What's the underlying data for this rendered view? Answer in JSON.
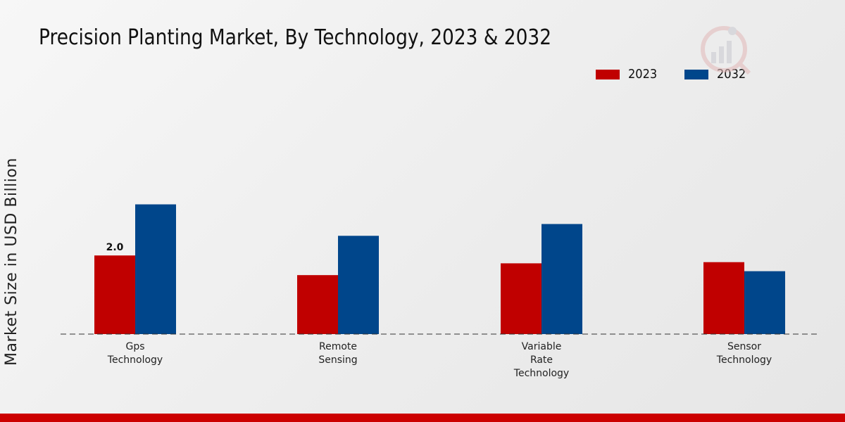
{
  "header": {
    "title": "Precision Planting Market, By Technology, 2023 & 2032"
  },
  "colors": {
    "series_2023": "#c00000",
    "series_2032": "#00468b",
    "footer": "#cc0000"
  },
  "chart_data": {
    "type": "bar",
    "title": "Precision Planting Market, By Technology, 2023 & 2032",
    "xlabel": "",
    "ylabel": "Market Size in USD Billion",
    "ylim": [
      0,
      6
    ],
    "categories": [
      [
        "Gps",
        "Technology"
      ],
      [
        "Remote",
        "Sensing"
      ],
      [
        "Variable",
        "Rate",
        "Technology"
      ],
      [
        "Sensor",
        "Technology"
      ]
    ],
    "series": [
      {
        "name": "2023",
        "values": [
          2.0,
          1.5,
          1.8,
          1.83
        ]
      },
      {
        "name": "2032",
        "values": [
          3.3,
          2.5,
          2.8,
          1.6
        ]
      }
    ],
    "data_labels": [
      {
        "series": 0,
        "index": 0,
        "text": "2.0"
      }
    ],
    "legend": "top-right",
    "grid": false
  }
}
